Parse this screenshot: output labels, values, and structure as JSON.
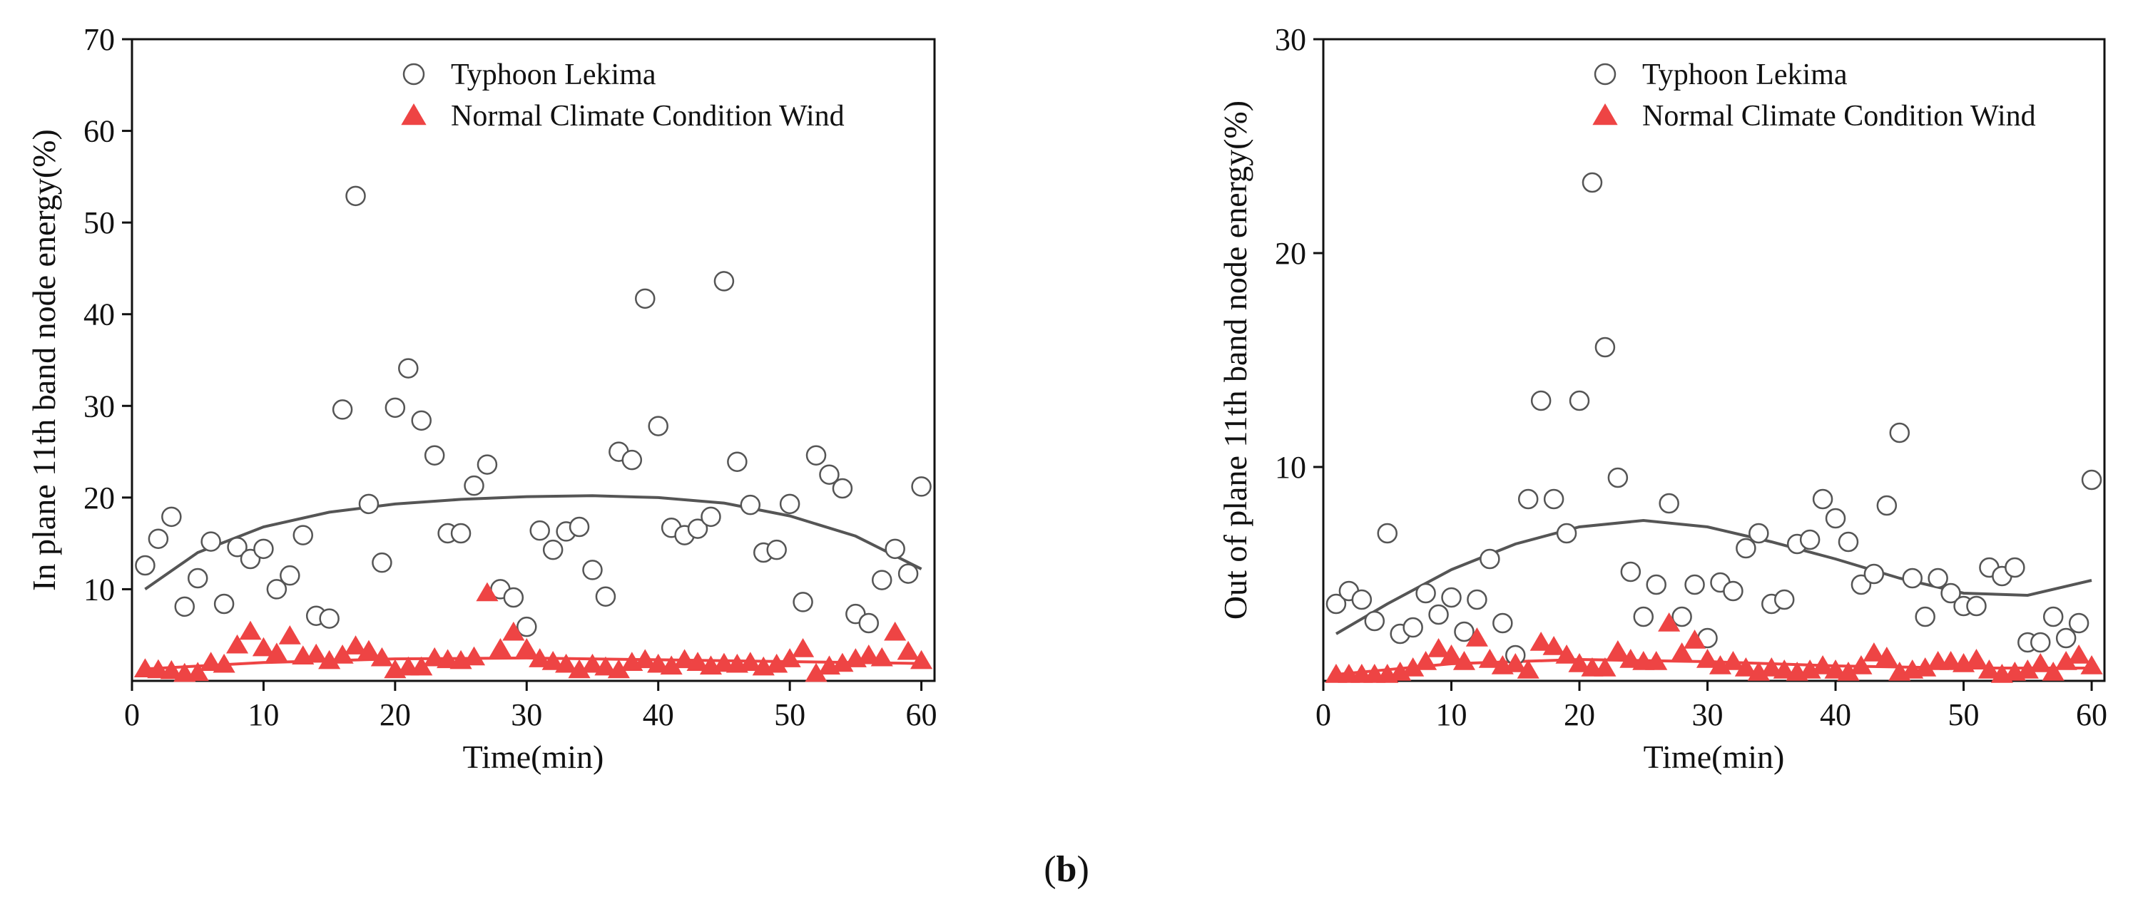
{
  "caption": {
    "open": "(",
    "letter": "b",
    "close": ")"
  },
  "colors": {
    "axis": "#111111",
    "circle": "#555555",
    "triangle": "#ee4444",
    "fit": "#555555"
  },
  "chart_data": [
    {
      "type": "scatter",
      "ylabel": "In plane 11th band node energy(%)",
      "xlabel": "Time(min)",
      "xlim": [
        0,
        61
      ],
      "ylim": [
        0,
        70
      ],
      "xticks": [
        0,
        10,
        20,
        30,
        40,
        50,
        60
      ],
      "yticks": [
        10,
        20,
        30,
        40,
        50,
        60,
        70
      ],
      "legend": {
        "position": "top-center",
        "entries": [
          "Typhoon Lekima",
          "Normal Climate Condition Wind"
        ]
      },
      "series": [
        {
          "name": "Typhoon Lekima",
          "marker": "open-circle",
          "x": [
            1,
            2,
            3,
            4,
            5,
            6,
            7,
            8,
            9,
            10,
            11,
            12,
            13,
            14,
            15,
            16,
            17,
            18,
            19,
            20,
            21,
            22,
            23,
            24,
            25,
            26,
            27,
            28,
            29,
            30,
            31,
            32,
            33,
            34,
            35,
            36,
            37,
            38,
            39,
            40,
            41,
            42,
            43,
            44,
            45,
            46,
            47,
            48,
            49,
            50,
            51,
            52,
            53,
            54,
            55,
            56,
            57,
            58,
            59,
            60
          ],
          "y": [
            12.6,
            15.5,
            17.9,
            8.1,
            11.2,
            15.2,
            8.4,
            14.6,
            13.3,
            14.4,
            10.0,
            11.5,
            15.9,
            7.1,
            6.8,
            29.6,
            52.9,
            19.3,
            12.9,
            29.8,
            34.1,
            28.4,
            24.6,
            16.1,
            16.1,
            21.3,
            23.6,
            10.0,
            9.1,
            5.9,
            16.4,
            14.3,
            16.3,
            16.8,
            12.1,
            9.2,
            25.0,
            24.1,
            41.7,
            27.8,
            16.7,
            15.9,
            16.6,
            17.9,
            43.6,
            23.9,
            19.2,
            14.0,
            14.3,
            19.3,
            8.6,
            24.6,
            22.5,
            21.0,
            7.3,
            6.3,
            11.0,
            14.4,
            11.7,
            21.2
          ]
        },
        {
          "name": "Normal Climate Condition Wind",
          "marker": "filled-triangle",
          "x": [
            1,
            2,
            3,
            4,
            5,
            6,
            7,
            8,
            9,
            10,
            11,
            12,
            13,
            14,
            15,
            16,
            17,
            18,
            19,
            20,
            21,
            22,
            23,
            24,
            25,
            26,
            27,
            28,
            29,
            30,
            31,
            32,
            33,
            34,
            35,
            36,
            37,
            38,
            39,
            40,
            41,
            42,
            43,
            44,
            45,
            46,
            47,
            48,
            49,
            50,
            51,
            52,
            53,
            54,
            55,
            56,
            57,
            58,
            59,
            60
          ],
          "y": [
            1.3,
            1.2,
            1.1,
            0.8,
            0.9,
            2.0,
            1.8,
            3.9,
            5.4,
            3.6,
            3.0,
            4.9,
            2.7,
            2.9,
            2.2,
            2.8,
            3.8,
            3.3,
            2.5,
            1.2,
            1.5,
            1.5,
            2.5,
            2.3,
            2.2,
            2.6,
            9.6,
            3.5,
            5.3,
            3.5,
            2.4,
            2.1,
            1.8,
            1.2,
            1.8,
            1.5,
            1.2,
            2.0,
            2.3,
            1.8,
            1.6,
            2.3,
            2.0,
            1.6,
            1.9,
            1.8,
            2.0,
            1.5,
            1.8,
            2.4,
            3.5,
            0.8,
            1.6,
            1.9,
            2.4,
            2.8,
            2.5,
            5.3,
            3.2,
            2.2
          ]
        }
      ],
      "fits": [
        {
          "name": "Typhoon Lekima fit",
          "x": [
            1,
            5,
            10,
            15,
            20,
            25,
            30,
            35,
            40,
            45,
            50,
            55,
            60
          ],
          "y": [
            10.0,
            14.0,
            16.8,
            18.4,
            19.3,
            19.8,
            20.1,
            20.2,
            20.0,
            19.4,
            18.0,
            15.8,
            12.2
          ]
        },
        {
          "name": "Normal Climate Condition Wind fit",
          "x": [
            1,
            10,
            20,
            30,
            40,
            50,
            60
          ],
          "y": [
            1.3,
            2.0,
            2.4,
            2.5,
            2.3,
            2.1,
            1.9
          ]
        }
      ]
    },
    {
      "type": "scatter",
      "ylabel": "Out of plane 11th band node energy(%)",
      "xlabel": "Time(min)",
      "xlim": [
        0,
        61
      ],
      "ylim": [
        0,
        30
      ],
      "xticks": [
        0,
        10,
        20,
        30,
        40,
        50,
        60
      ],
      "yticks": [
        10,
        20,
        30
      ],
      "legend": {
        "position": "top-center",
        "entries": [
          "Typhoon Lekima",
          "Normal Climate Condition Wind"
        ]
      },
      "series": [
        {
          "name": "Typhoon Lekima",
          "marker": "open-circle",
          "x": [
            1,
            2,
            3,
            4,
            5,
            6,
            7,
            8,
            9,
            10,
            11,
            12,
            13,
            14,
            15,
            16,
            17,
            18,
            19,
            20,
            21,
            22,
            23,
            24,
            25,
            26,
            27,
            28,
            29,
            30,
            31,
            32,
            33,
            34,
            35,
            36,
            37,
            38,
            39,
            40,
            41,
            42,
            43,
            44,
            45,
            46,
            47,
            48,
            49,
            50,
            51,
            52,
            53,
            54,
            55,
            56,
            57,
            58,
            59,
            60
          ],
          "y": [
            3.6,
            4.2,
            3.8,
            2.8,
            6.9,
            2.2,
            2.5,
            4.1,
            3.1,
            3.9,
            2.3,
            3.8,
            5.7,
            2.7,
            1.2,
            8.5,
            13.1,
            8.5,
            6.9,
            13.1,
            23.3,
            15.6,
            9.5,
            5.1,
            3.0,
            4.5,
            8.3,
            3.0,
            4.5,
            2.0,
            4.6,
            4.2,
            6.2,
            6.9,
            3.6,
            3.8,
            6.4,
            6.6,
            8.5,
            7.6,
            6.5,
            4.5,
            5.0,
            8.2,
            11.6,
            4.8,
            3.0,
            4.8,
            4.1,
            3.5,
            3.5,
            5.3,
            4.9,
            5.3,
            1.8,
            1.8,
            3.0,
            2.0,
            2.7,
            9.4
          ]
        },
        {
          "name": "Normal Climate Condition Wind",
          "marker": "filled-triangle",
          "x": [
            1,
            2,
            3,
            4,
            5,
            6,
            7,
            8,
            9,
            10,
            11,
            12,
            13,
            14,
            15,
            16,
            17,
            18,
            19,
            20,
            21,
            22,
            23,
            24,
            25,
            26,
            27,
            28,
            29,
            30,
            31,
            32,
            33,
            34,
            35,
            36,
            37,
            38,
            39,
            40,
            41,
            42,
            43,
            44,
            45,
            46,
            47,
            48,
            49,
            50,
            51,
            52,
            53,
            54,
            55,
            56,
            57,
            58,
            59,
            60
          ],
          "y": [
            0.3,
            0.3,
            0.3,
            0.3,
            0.3,
            0.4,
            0.6,
            0.9,
            1.5,
            1.2,
            0.9,
            2.0,
            1.0,
            0.7,
            0.8,
            0.5,
            1.8,
            1.6,
            1.2,
            0.8,
            0.6,
            0.6,
            1.4,
            1.0,
            0.9,
            0.9,
            2.7,
            1.3,
            1.9,
            1.0,
            0.7,
            0.9,
            0.6,
            0.4,
            0.6,
            0.5,
            0.4,
            0.5,
            0.7,
            0.5,
            0.4,
            0.7,
            1.3,
            1.1,
            0.4,
            0.5,
            0.6,
            0.9,
            0.9,
            0.8,
            1.0,
            0.5,
            0.3,
            0.4,
            0.5,
            0.8,
            0.4,
            0.9,
            1.2,
            0.7
          ]
        }
      ],
      "fits": [
        {
          "name": "Typhoon Lekima fit",
          "x": [
            1,
            5,
            10,
            15,
            20,
            25,
            30,
            35,
            40,
            45,
            50,
            55,
            60
          ],
          "y": [
            2.2,
            3.6,
            5.2,
            6.4,
            7.2,
            7.5,
            7.2,
            6.5,
            5.7,
            4.8,
            4.1,
            4.0,
            4.7
          ]
        },
        {
          "name": "Normal Climate Condition Wind fit",
          "x": [
            1,
            10,
            20,
            30,
            40,
            50,
            60
          ],
          "y": [
            0.3,
            0.8,
            1.0,
            0.9,
            0.7,
            0.6,
            0.6
          ]
        }
      ]
    }
  ]
}
